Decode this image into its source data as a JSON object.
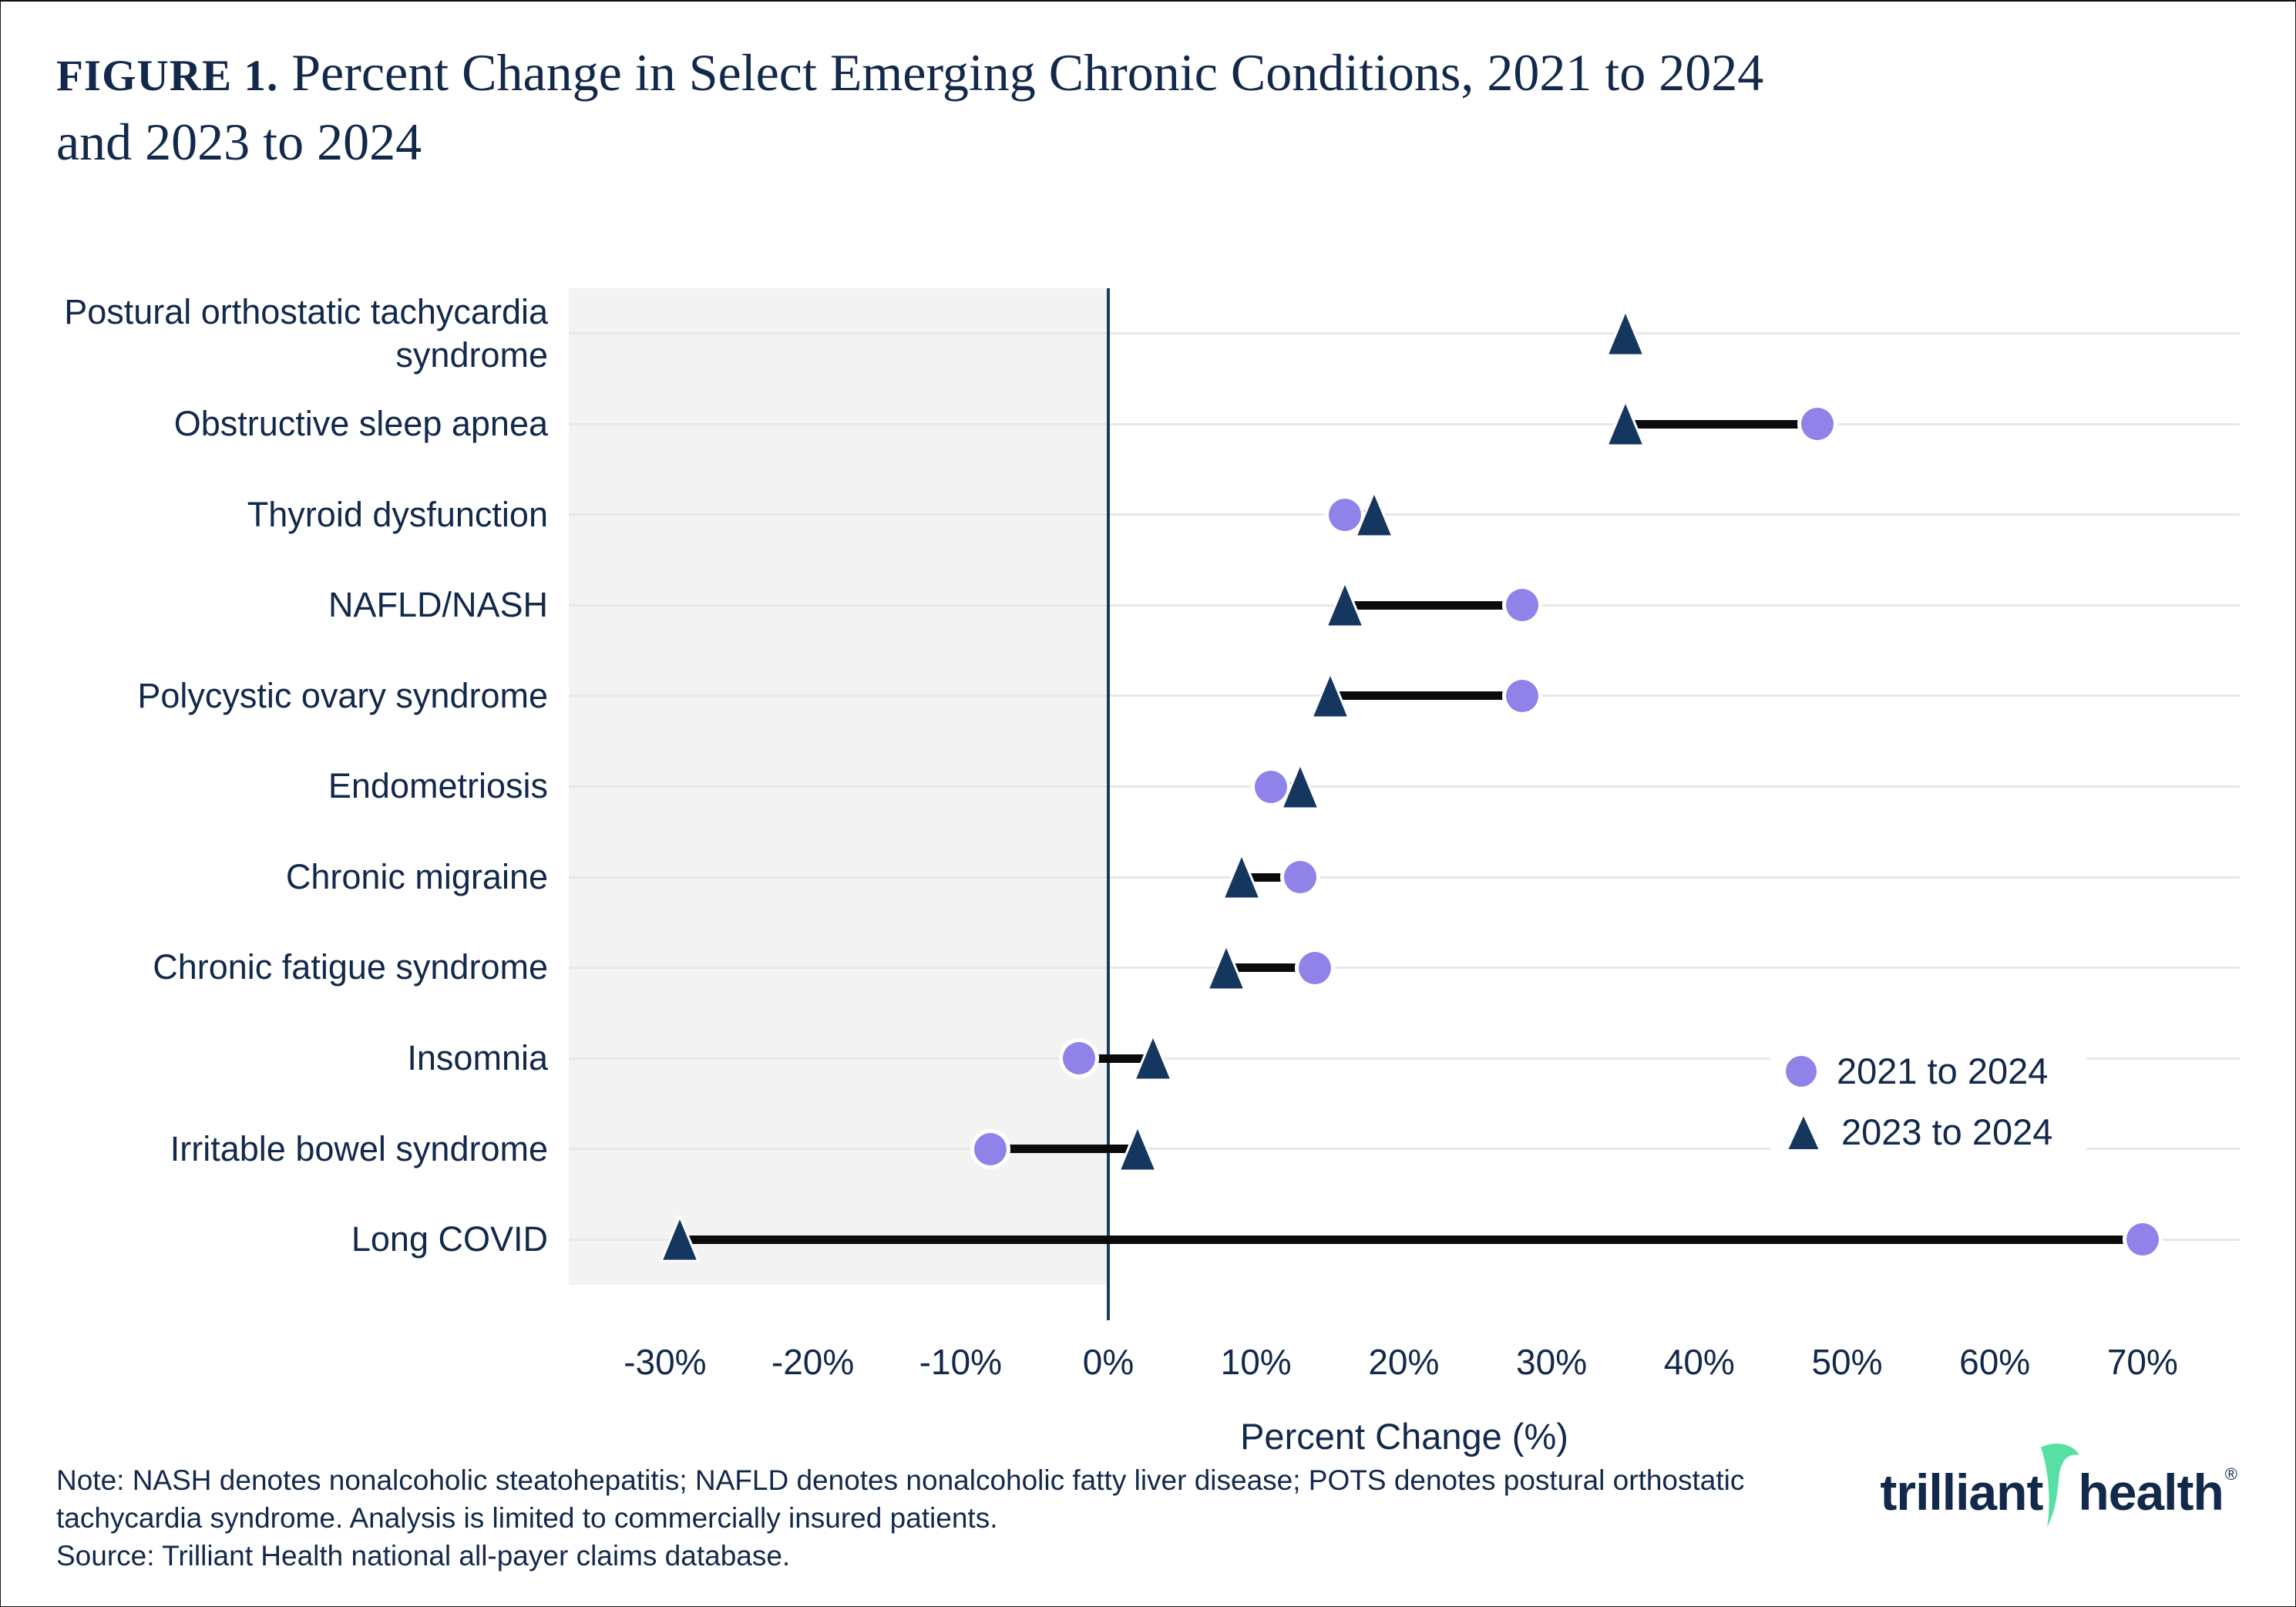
{
  "title": {
    "prefix": "FIGURE 1.",
    "text": " Percent Change in Select Emerging Chronic Conditions, 2021 to 2024 and 2023 to 2024"
  },
  "chart_data": {
    "type": "dumbbell",
    "title": "Percent Change in Select Emerging Chronic Conditions, 2021 to 2024 and 2023 to 2024",
    "xlabel": "Percent Change (%)",
    "xlim": [
      -36.5,
      76.5
    ],
    "x_ticks": [
      "-30%",
      "-20%",
      "-10%",
      "0%",
      "10%",
      "20%",
      "30%",
      "40%",
      "50%",
      "60%",
      "70%"
    ],
    "grid": "horizontal",
    "negative_region_shaded": true,
    "legend_position": "inside-right",
    "categories": [
      "Postural orthostatic tachycardia syndrome",
      "Obstructive sleep apnea",
      "Thyroid dysfunction",
      "NAFLD/NASH",
      "Polycystic ovary syndrome",
      "Endometriosis",
      "Chronic migraine",
      "Chronic fatigue syndrome",
      "Insomnia",
      "Irritable bowel syndrome",
      "Long COVID"
    ],
    "series": [
      {
        "name": "2021 to 2024",
        "marker": "circle",
        "values": [
          null,
          48,
          16,
          28,
          28,
          11,
          13,
          14,
          -2,
          -8,
          70
        ]
      },
      {
        "name": "2023 to 2024",
        "marker": "triangle",
        "values": [
          35,
          35,
          18,
          16,
          15,
          13,
          9,
          8,
          3,
          2,
          -29
        ]
      }
    ]
  },
  "note": {
    "line1": "Note: NASH denotes nonalcoholic steatohepatitis; NAFLD denotes nonalcoholic fatty liver disease; POTS denotes postural orthostatic",
    "line2": "tachycardia syndrome. Analysis is limited to commercially insured patients.",
    "line3": "Source: Trilliant Health national all-payer claims database."
  },
  "logo": {
    "word1": "trilliant",
    "word2": "health",
    "registered": "®"
  },
  "colors": {
    "navy_text": "#13294B",
    "circle": "#8F82E8",
    "triangle": "#14365F",
    "connector": "#0B0B0B",
    "gridline": "#E8E8E8",
    "shade": "#F3F3F3",
    "zero_line": "#1C3B60",
    "logo_green": "#57E0A4"
  }
}
